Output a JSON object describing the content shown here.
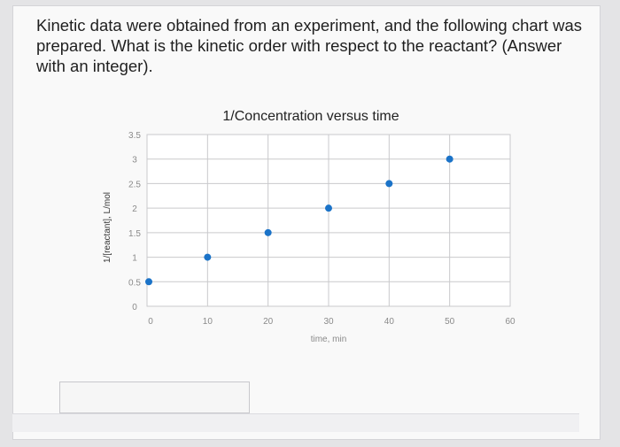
{
  "question": {
    "text": "Kinetic data were obtained from an experiment, and the following chart was prepared. What is the kinetic order with respect to the reactant? (Answer with an integer)."
  },
  "answer": {
    "value": ""
  },
  "colors": {
    "point": "#1b73c8",
    "grid": "#c9c9cc",
    "tick_label": "#8a8a8a",
    "text": "#1f1f1f"
  },
  "chart_data": {
    "type": "scatter",
    "title": "1/Concentration versus time",
    "xlabel": "time, min",
    "ylabel": "1/[reactant], L/mol",
    "xlim": [
      0,
      60
    ],
    "ylim": [
      0,
      3.5
    ],
    "xticks": [
      "0",
      "10",
      "20",
      "30",
      "40",
      "50",
      "60"
    ],
    "yticks": [
      "0",
      "0.5",
      "1",
      "1.5",
      "2",
      "2.5",
      "3",
      "3.5"
    ],
    "grid": true,
    "legend": "none",
    "x": [
      0,
      10,
      20,
      30,
      40,
      50
    ],
    "y": [
      0.5,
      1.0,
      1.5,
      2.0,
      2.5,
      3.0
    ]
  }
}
